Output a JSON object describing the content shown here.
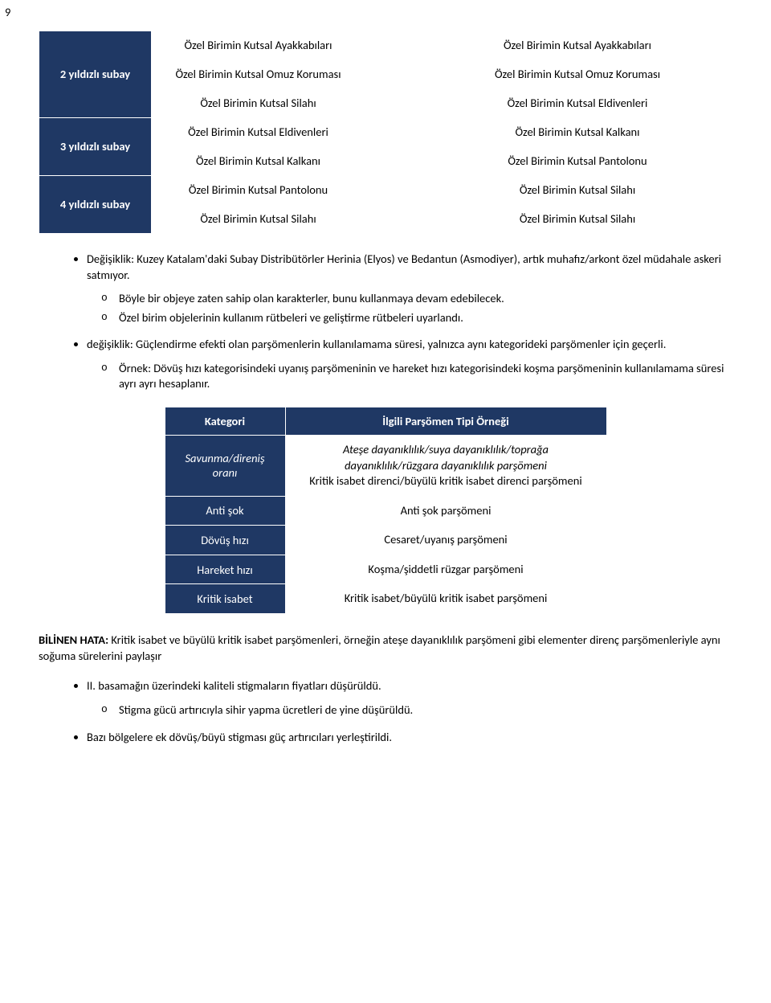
{
  "page_number": "9",
  "top_table": {
    "rows": [
      {
        "label": "2 yıldızlı subay",
        "middle": [
          "Özel Birimin Kutsal Ayakkabıları",
          "Özel Birimin Kutsal Omuz Koruması",
          "Özel Birimin Kutsal Silahı"
        ],
        "right": [
          "Özel Birimin Kutsal Ayakkabıları",
          "Özel Birimin Kutsal Omuz Koruması",
          "Özel Birimin Kutsal Eldivenleri"
        ]
      },
      {
        "label": "3 yıldızlı subay",
        "middle": [
          "Özel Birimin Kutsal Eldivenleri",
          "Özel Birimin Kutsal Kalkanı"
        ],
        "right": [
          "Özel Birimin Kutsal Kalkanı",
          "Özel Birimin Kutsal Pantolonu"
        ]
      },
      {
        "label": "4 yıldızlı subay",
        "middle": [
          "Özel Birimin Kutsal Pantolonu",
          "Özel Birimin Kutsal Silahı"
        ],
        "right": [
          "Özel Birimin Kutsal Silahı",
          "Özel Birimin Kutsal Silahı"
        ]
      }
    ]
  },
  "bullets": {
    "b1": "Değişiklik: Kuzey Katalam'daki Subay Distribütörler Herinia (Elyos) ve Bedantun (Asmodiyer), artık muhafız/arkont özel müdahale askeri satmıyor.",
    "b1a": "Böyle bir objeye zaten sahip olan karakterler, bunu kullanmaya devam edebilecek.",
    "b1b": "Özel birim objelerinin kullanım rütbeleri ve geliştirme rütbeleri uyarlandı.",
    "b2": "değişiklik: Güçlendirme efekti olan parşömenlerin kullanılamama süresi, yalnızca aynı kategorideki parşömenler için geçerli.",
    "b2a": "Örnek: Dövüş hızı kategorisindeki uyanış parşömeninin ve hareket hızı kategorisindeki koşma parşömeninin kullanılamama süresi ayrı ayrı hesaplanır."
  },
  "cat_table": {
    "head": {
      "left": "Kategori",
      "right": "İlgili Parşömen Tipi Örneği"
    },
    "rows": [
      {
        "label": "Savunma/direniş oranı",
        "label_italic": true,
        "val_line1": "Ateşe dayanıklılık/suya dayanıklılık/toprağa dayanıklılık/rüzgara dayanıklılık parşömeni",
        "val_line2": "Kritik isabet direnci/büyülü kritik isabet direnci parşömeni"
      },
      {
        "label": "Anti şok",
        "val": "Anti şok parşömeni"
      },
      {
        "label": "Dövüş hızı",
        "val": "Cesaret/uyanış parşömeni"
      },
      {
        "label": "Hareket hızı",
        "val": "Koşma/şiddetli rüzgar parşömeni"
      },
      {
        "label": "Kritik isabet",
        "val": "Kritik isabet/büyülü kritik isabet parşömeni"
      }
    ]
  },
  "known_error": {
    "prefix": "BİLİNEN HATA:",
    "text": " Kritik isabet ve büyülü kritik isabet parşömenleri, örneğin ateşe dayanıklılık parşömeni gibi elementer direnç parşömenleriyle aynı soğuma sürelerini paylaşır"
  },
  "bullets2": {
    "b3": "II. basamağın üzerindeki kaliteli stigmaların fiyatları düşürüldü.",
    "b3a": "Stigma gücü artırıcıyla sihir yapma ücretleri de yine düşürüldü.",
    "b4": "Bazı bölgelere ek dövüş/büyü stigması güç artırıcıları yerleştirildi."
  },
  "colors": {
    "header_bg": "#1f3864",
    "header_fg": "#ffffff"
  }
}
